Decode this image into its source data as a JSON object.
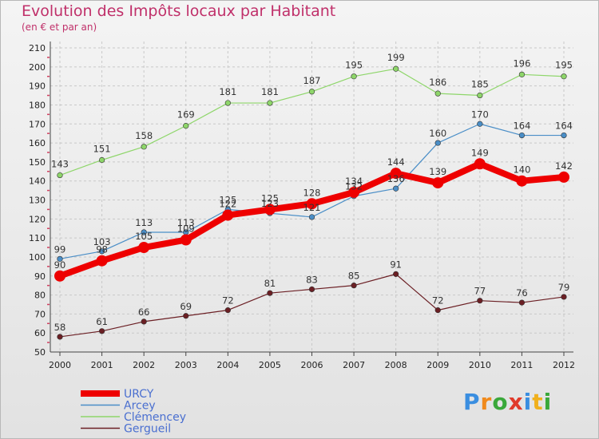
{
  "title": "Evolution des Impôts locaux par Habitant",
  "subtitle": "(en € et par an)",
  "logo": {
    "text": "Proxiti",
    "letter_colors": [
      "#3a8ee0",
      "#f08a1c",
      "#3aa83a",
      "#e03a2a",
      "#3a8ee0",
      "#f0b01c",
      "#3aa83a"
    ]
  },
  "chart_data": {
    "type": "line",
    "x": [
      "2000",
      "2001",
      "2002",
      "2003",
      "2004",
      "2005",
      "2006",
      "2007",
      "2008",
      "2009",
      "2010",
      "2011",
      "2012"
    ],
    "ylim": [
      50,
      210
    ],
    "yticks": [
      50,
      60,
      70,
      80,
      90,
      100,
      110,
      120,
      130,
      140,
      150,
      160,
      170,
      180,
      190,
      200,
      210
    ],
    "grid": true,
    "legend_position": "bottom-left",
    "series": [
      {
        "name": "Gergueil",
        "color": "#6b1f24",
        "values": [
          58,
          61,
          66,
          69,
          72,
          81,
          83,
          85,
          91,
          72,
          77,
          76,
          79
        ]
      },
      {
        "name": "Clémencey",
        "color": "#8ed66a",
        "values": [
          143,
          151,
          158,
          169,
          181,
          181,
          187,
          195,
          199,
          186,
          185,
          196,
          195
        ]
      },
      {
        "name": "Arcey",
        "color": "#4a8ec7",
        "values": [
          99,
          103,
          113,
          113,
          125,
          123,
          121,
          132,
          136,
          160,
          170,
          164,
          164
        ]
      },
      {
        "name": "URCY",
        "color": "#ee0000",
        "values": [
          90,
          98,
          105,
          109,
          122,
          125,
          128,
          134,
          144,
          139,
          149,
          140,
          142
        ]
      }
    ],
    "data_labels": {
      "Gergueil": [
        "58",
        "61",
        "66",
        "69",
        "72",
        "81",
        "83",
        "85",
        "91",
        "72",
        "77",
        "76",
        "79"
      ],
      "Clémencey": [
        "143",
        "151",
        "158",
        "169",
        "181",
        "181",
        "187",
        "195",
        "199",
        "186",
        "185",
        "196",
        "195"
      ],
      "Arcey": [
        "99",
        "103",
        "113",
        "113",
        "125",
        "123",
        "121",
        "132",
        "136",
        "160",
        "170",
        "164",
        "164"
      ],
      "URCY": [
        "90",
        "98",
        "105",
        "109",
        "122",
        "125",
        "128",
        "134",
        "144",
        "139",
        "149",
        "140",
        "142"
      ]
    },
    "legend": [
      "URCY",
      "Arcey",
      "Clémencey",
      "Gergueil"
    ]
  }
}
